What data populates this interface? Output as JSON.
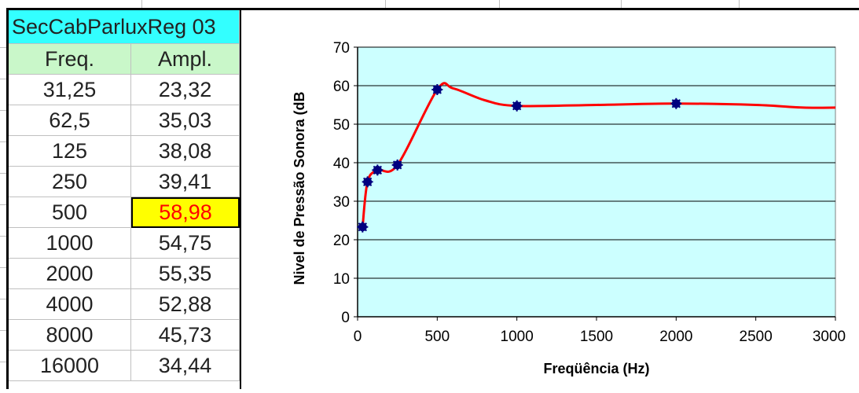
{
  "table": {
    "title": "SecCabParluxReg 03",
    "headers": [
      "Freq.",
      "Ampl."
    ],
    "rows": [
      {
        "freq": "31,25",
        "ampl": "23,32"
      },
      {
        "freq": "62,5",
        "ampl": "35,03"
      },
      {
        "freq": "125",
        "ampl": "38,08"
      },
      {
        "freq": "250",
        "ampl": "39,41"
      },
      {
        "freq": "500",
        "ampl": "58,98"
      },
      {
        "freq": "1000",
        "ampl": "54,75"
      },
      {
        "freq": "2000",
        "ampl": "55,35"
      },
      {
        "freq": "4000",
        "ampl": "52,88"
      },
      {
        "freq": "8000",
        "ampl": "45,73"
      },
      {
        "freq": "16000",
        "ampl": "34,44"
      }
    ],
    "highlight_row": 4,
    "highlight_fill": "#ffff00",
    "highlight_text_color": "#ff0000"
  },
  "chart_data": {
    "type": "line",
    "xlabel": "Freqüência (Hz)",
    "ylabel": "Nivel de Pressão Sonora (dB",
    "xlim": [
      0,
      3000
    ],
    "ylim": [
      0,
      70
    ],
    "xticks": [
      0,
      500,
      1000,
      1500,
      2000,
      2500,
      3000
    ],
    "yticks": [
      0,
      10,
      20,
      30,
      40,
      50,
      60,
      70
    ],
    "grid": "horizontal",
    "plot_background": "#ccffff",
    "series": [
      {
        "style": "smooth-line",
        "color": "#ff0000",
        "x": [
          31.25,
          62.5,
          125,
          250,
          500,
          600,
          800,
          1000,
          1500,
          2000,
          2500,
          2800,
          3000
        ],
        "y": [
          23.32,
          35.03,
          38.08,
          39.41,
          58.98,
          59.3,
          56.2,
          54.75,
          55.0,
          55.35,
          55.0,
          54.3,
          54.3
        ]
      },
      {
        "style": "markers",
        "color": "#00007f",
        "x": [
          31.25,
          62.5,
          125,
          250,
          500,
          1000,
          2000
        ],
        "y": [
          23.32,
          35.03,
          38.08,
          39.41,
          58.98,
          54.75,
          55.35
        ]
      }
    ]
  }
}
